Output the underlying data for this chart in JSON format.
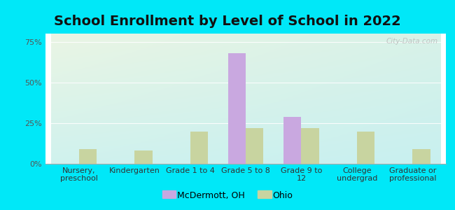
{
  "title": "School Enrollment by Level of School in 2022",
  "categories": [
    "Nursery,\npreschool",
    "Kindergarten",
    "Grade 1 to 4",
    "Grade 5 to 8",
    "Grade 9 to\n12",
    "College\nundergrad",
    "Graduate or\nprofessional"
  ],
  "mcdermott": [
    0,
    0,
    0,
    68,
    29,
    0,
    0
  ],
  "ohio": [
    9,
    8,
    20,
    22,
    22,
    20,
    9
  ],
  "mcdermott_color": "#c9a8e0",
  "ohio_color": "#c8d4a0",
  "background_outer": "#00e8f8",
  "background_inner_topleft": "#eaf5e4",
  "background_inner_bottomright": "#c8f0f0",
  "ylabel_ticks": [
    "0%",
    "25%",
    "50%",
    "75%"
  ],
  "yticks": [
    0,
    25,
    50,
    75
  ],
  "ylim": [
    0,
    80
  ],
  "bar_width": 0.32,
  "legend_mcdermott": "McDermott, OH",
  "legend_ohio": "Ohio",
  "title_fontsize": 14,
  "tick_fontsize": 8,
  "watermark": "City-Data.com"
}
